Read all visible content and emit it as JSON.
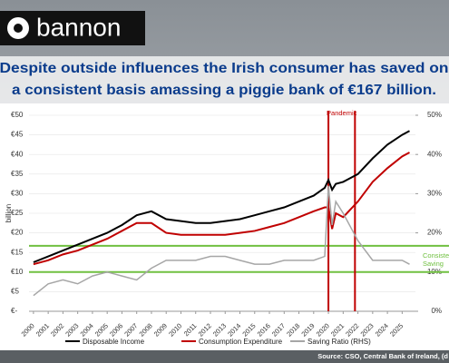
{
  "brand": "bannon",
  "headline": [
    "Despite outside influences the Irish consumer has saved on",
    "a consistent basis amassing a piggie bank of €167 billion."
  ],
  "chart_data": {
    "type": "line",
    "y_label": "billion",
    "x": [
      2000,
      2001,
      2002,
      2003,
      2004,
      2005,
      2006,
      2007,
      2008,
      2009,
      2010,
      2011,
      2012,
      2013,
      2014,
      2015,
      2016,
      2017,
      2018,
      2019,
      2019.75,
      2020,
      2020.25,
      2020.5,
      2021,
      2022,
      2023,
      2024,
      2025,
      2025.5
    ],
    "xlim": [
      1999.7,
      2025.9
    ],
    "xticks": [
      2000,
      2001,
      2002,
      2003,
      2004,
      2005,
      2006,
      2007,
      2008,
      2009,
      2010,
      2011,
      2012,
      2013,
      2014,
      2015,
      2016,
      2017,
      2018,
      2019,
      2020,
      2021,
      2022,
      2023,
      2024,
      2025
    ],
    "ylim": [
      0,
      50
    ],
    "yticks": [
      {
        "value": 0,
        "label": "€-"
      },
      {
        "value": 5,
        "label": "€5"
      },
      {
        "value": 10,
        "label": "€10"
      },
      {
        "value": 15,
        "label": "€15"
      },
      {
        "value": 20,
        "label": "€20"
      },
      {
        "value": 25,
        "label": "€25"
      },
      {
        "value": 30,
        "label": "€30"
      },
      {
        "value": 35,
        "label": "€35"
      },
      {
        "value": 40,
        "label": "€40"
      },
      {
        "value": 45,
        "label": "€45"
      },
      {
        "value": 50,
        "label": "€50"
      }
    ],
    "y2lim": [
      0,
      50
    ],
    "y2ticks": [
      {
        "value": 0,
        "label": "0%"
      },
      {
        "value": 10,
        "label": "10%"
      },
      {
        "value": 20,
        "label": "20%"
      },
      {
        "value": 30,
        "label": "30%"
      },
      {
        "value": 40,
        "label": "40%"
      },
      {
        "value": 50,
        "label": "50%"
      }
    ],
    "series": [
      {
        "name": "Disposable Income",
        "color": "#000000",
        "values": [
          12.5,
          14,
          15.5,
          17,
          18.5,
          20,
          22,
          24.5,
          25.5,
          23.5,
          23,
          22.5,
          22.5,
          23,
          23.5,
          24.5,
          25.5,
          26.5,
          28,
          29.5,
          31.5,
          33.5,
          31,
          32.5,
          33,
          35,
          39,
          42.5,
          45,
          46
        ]
      },
      {
        "name": "Consumption Expenditure",
        "color": "#c00000",
        "values": [
          12,
          13,
          14.5,
          15.5,
          17,
          18.5,
          20.5,
          22.5,
          22.5,
          20,
          19.5,
          19.5,
          19.5,
          19.5,
          20,
          20.5,
          21.5,
          22.5,
          24,
          25.5,
          26.5,
          26.5,
          21,
          25,
          24,
          28,
          33,
          36.5,
          39.5,
          40.5
        ]
      },
      {
        "name": "Saving Ratio (RHS)",
        "color": "#a6a6a6",
        "axis": "y2",
        "values": [
          4,
          7,
          8,
          7,
          9,
          10,
          9,
          8,
          11,
          13,
          13,
          13,
          14,
          14,
          13,
          12,
          12,
          13,
          13,
          13,
          14,
          32,
          22,
          28,
          25,
          18,
          13,
          13,
          13,
          12
        ]
      }
    ],
    "pandemic": {
      "label": "Pandemic",
      "x": [
        2020,
        2021.8
      ],
      "color": "#c00000"
    },
    "saving_band": {
      "label": [
        "Consistent",
        "Saving"
      ],
      "y2": [
        10,
        16.7
      ],
      "color": "#70c040"
    },
    "source": "Source: CSO, Central Bank of Ireland, (d"
  }
}
